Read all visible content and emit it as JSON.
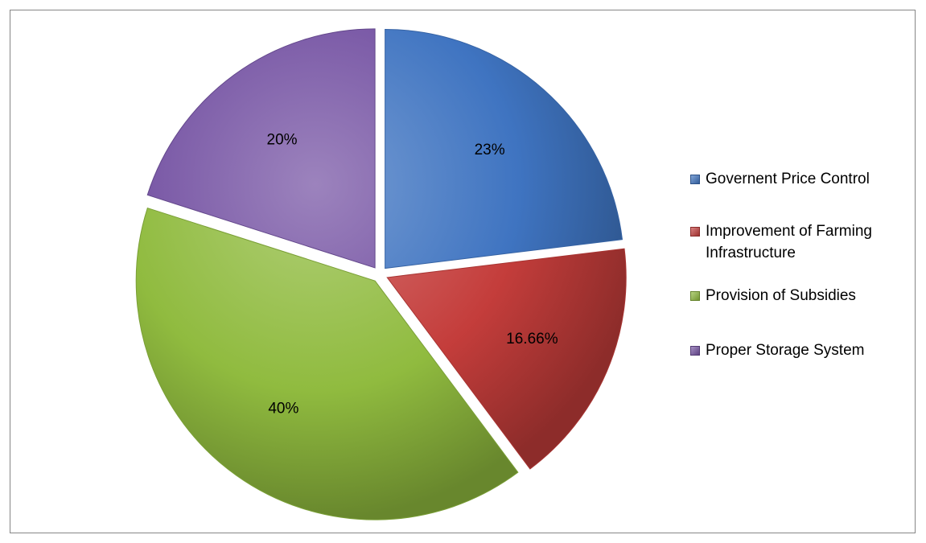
{
  "chart_data": {
    "type": "pie",
    "title": "",
    "categories": [
      "Governent Price Control",
      "Improvement of Farming Infrastructure",
      "Provision of Subsidies",
      "Proper Storage System"
    ],
    "values": [
      23,
      16.66,
      40,
      20
    ],
    "data_labels": [
      "23%",
      "16.66%",
      "40%",
      "20%"
    ],
    "colors": [
      "#3f74c1",
      "#c43d3b",
      "#90bb3f",
      "#7553a3"
    ],
    "legend_position": "right",
    "exploded": true
  }
}
